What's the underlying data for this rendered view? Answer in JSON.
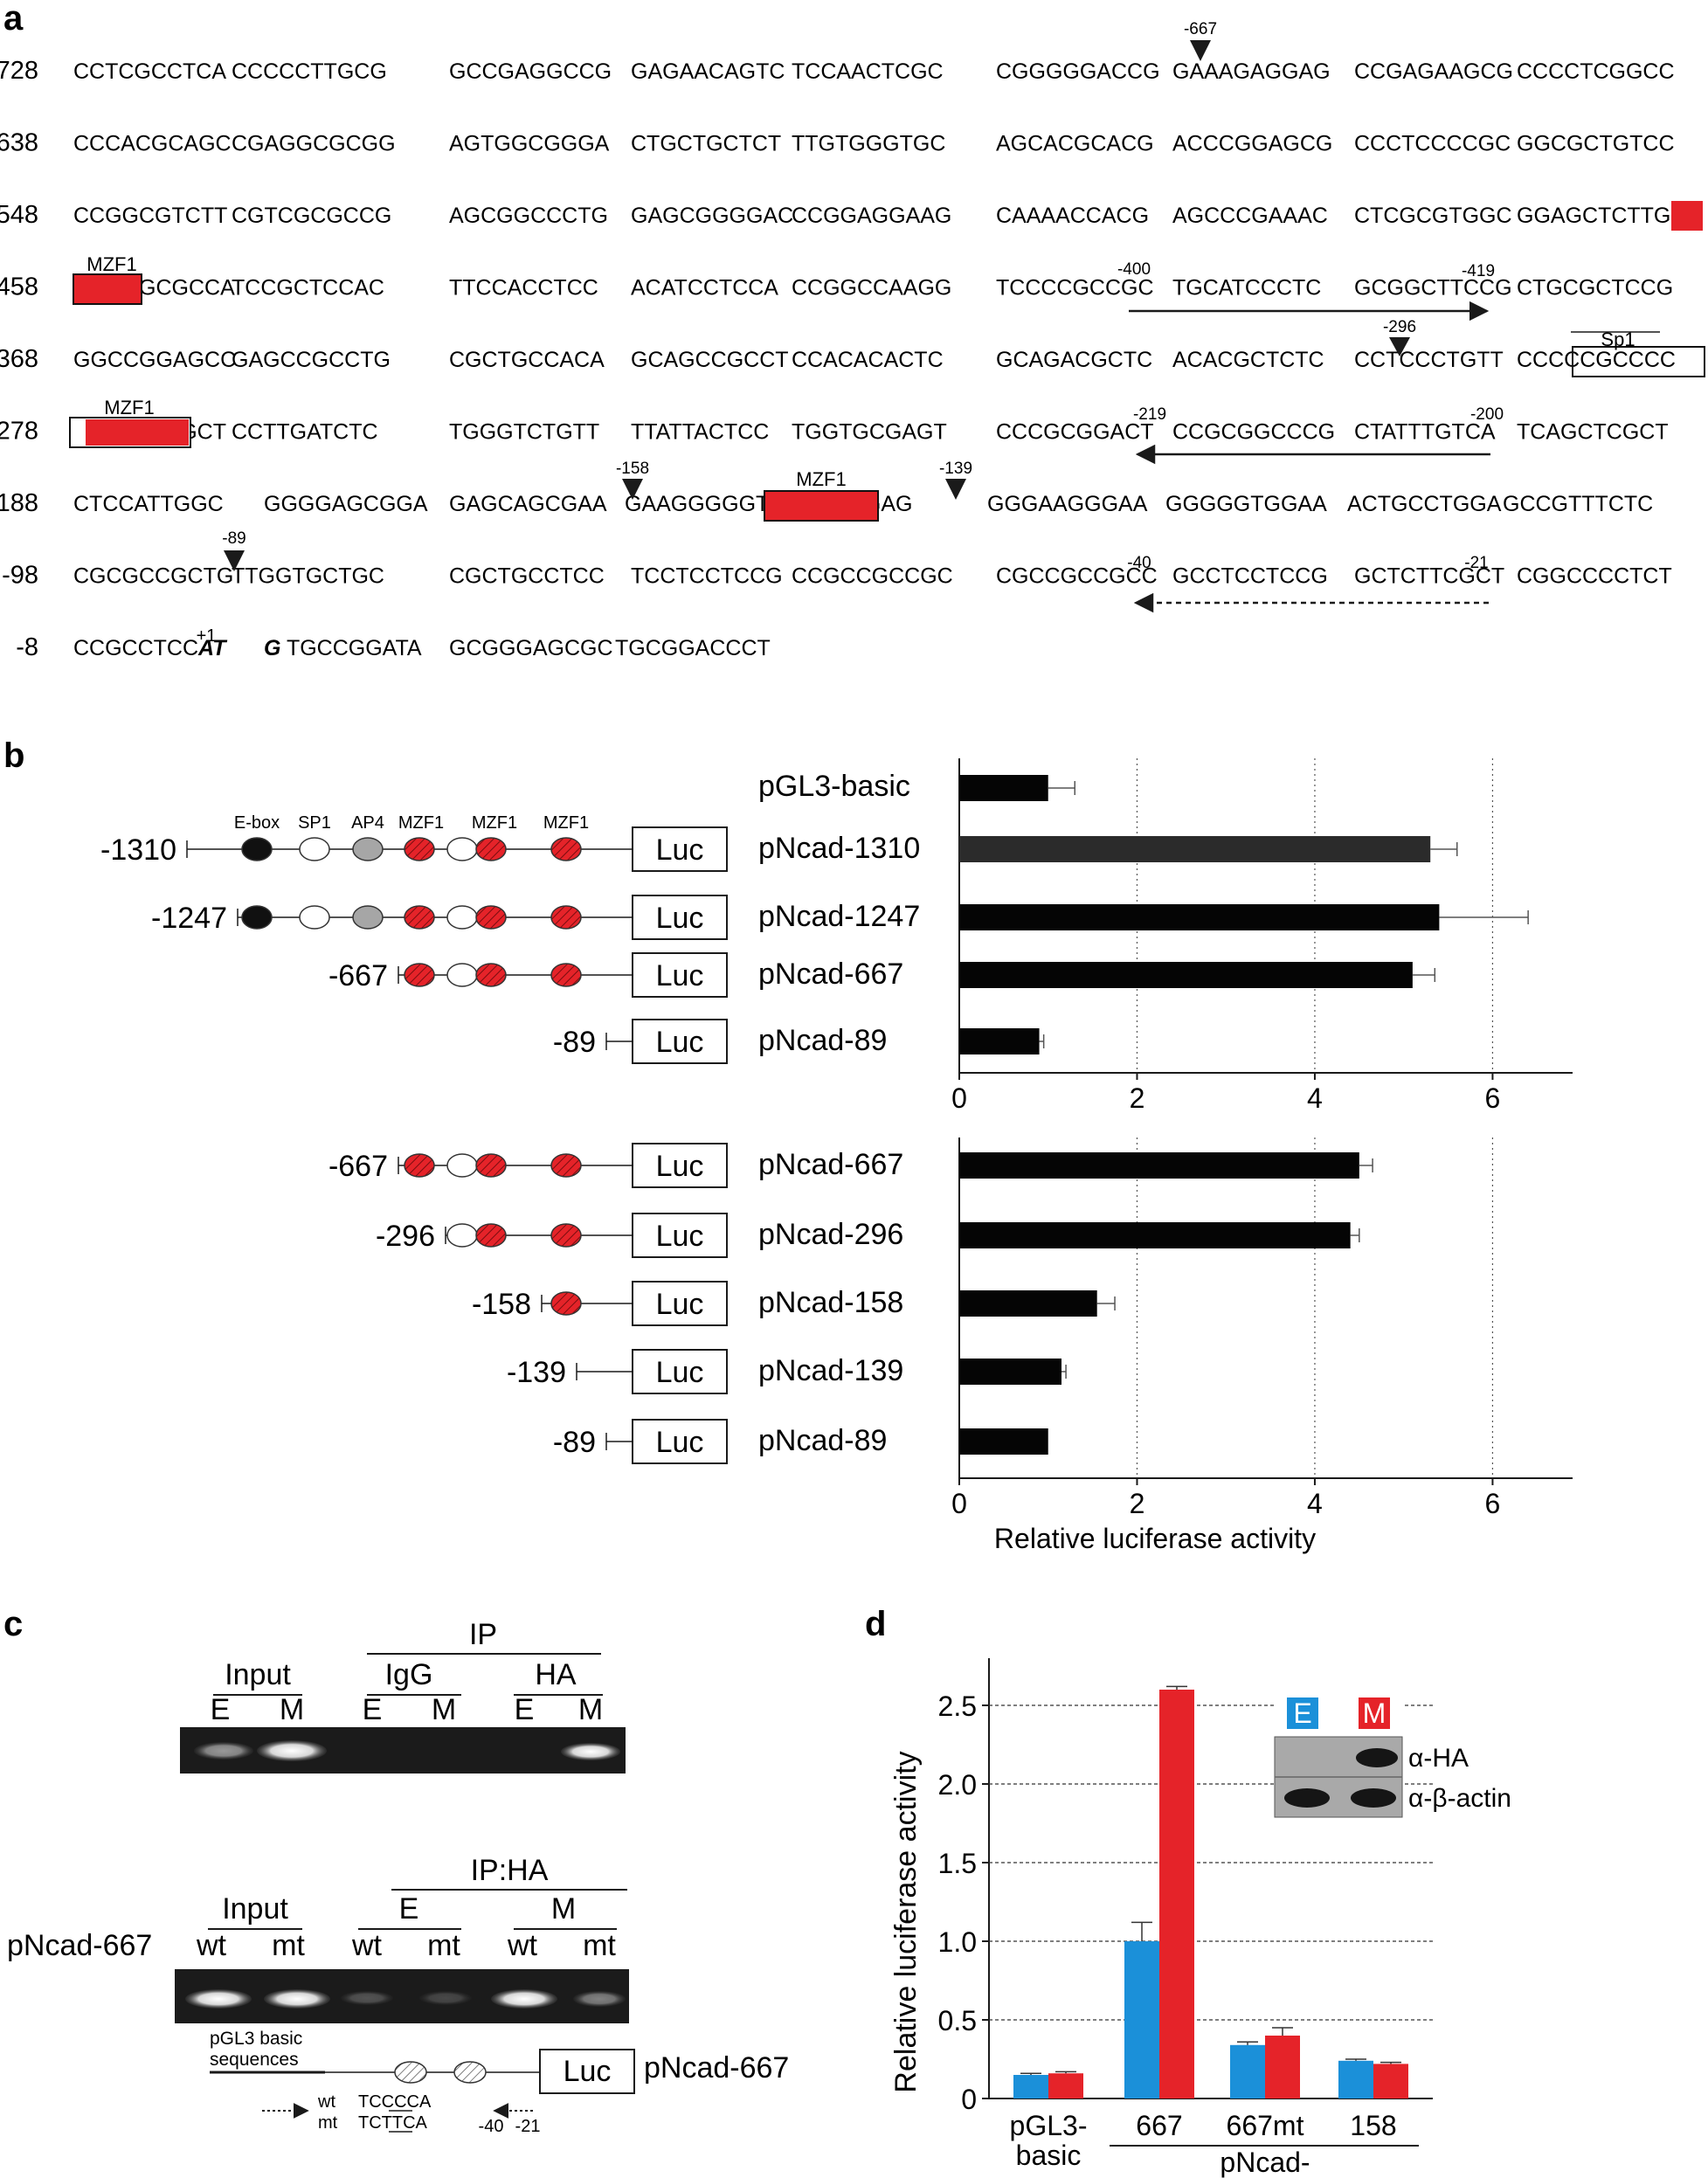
{
  "panel_labels": {
    "a": "a",
    "b": "b",
    "c": "c",
    "d": "d"
  },
  "colors": {
    "red": "#e52329",
    "blue": "#1b90d9",
    "black": "#111111",
    "gray_oval": "#a6a6a6",
    "gel_bg": "#1b1b1b"
  },
  "panel_a": {
    "rows": [
      {
        "pos": "-728",
        "seqs": [
          "CCTCGCCTCA",
          "CCCCCTTGCG",
          "GCCGAGGCCG",
          "GAGAACAGTC",
          "TCCAACTCGC",
          "CGGGGGACCG",
          "GAAAGAGGAG",
          "CCGAGAAGCG",
          "CCCCTCGGCC"
        ]
      },
      {
        "pos": "-638",
        "seqs": [
          "CCCACGCAGC",
          "CGAGGCGCGG",
          "AGTGGCGGGA",
          "CTGCTGCTCT",
          "TTGTGGGTGC",
          "AGCACGCACG",
          "ACCCGGAGCG",
          "CCCTCCCCGC",
          "GGCGCTGTCC"
        ]
      },
      {
        "pos": "-548",
        "seqs": [
          "CCGGCGTCTT",
          "CGTCGCGCCG",
          "AGCGGCCCTG",
          "GAGCGGGGAC",
          "CCGGAGGAAG",
          "CAAAACCACG",
          "AGCCCGAAAC",
          "CTCGCGTGGC",
          "GGAGCTCTTG"
        ]
      },
      {
        "pos": "-458",
        "seqs": [
          "GGGAGCGCCA",
          "TCCGCTCCAC",
          "TTCCACCTCC",
          "ACATCCTCCA",
          "CCGGCCAAGG",
          "TCCCCGCCGC",
          "TGCATCCCTC",
          "GCGGCTTCCG",
          "CTGCGCTCCG"
        ]
      },
      {
        "pos": "-368",
        "seqs": [
          "GGCCGGAGCC",
          "GAGCCGCCTG",
          "CGCTGCCACA",
          "GCAGCCGCCT",
          "CCACACACTC",
          "GCAGACGCTC",
          "ACACGCTCTC",
          "CCTCCCTGTT",
          "CCCCCGCCCC"
        ]
      },
      {
        "pos": "-278",
        "seqs": [
          "CTCCCCAGCT",
          "CCTTGATCTC",
          "TGGGTCTGTT",
          "TTATTACTCC",
          "TGGTGCGAGT",
          "CCCGCGGACT",
          "CCGCGGCCCG",
          "CTATTTGTCA",
          "TCAGCTCGCT"
        ]
      },
      {
        "pos": "-188",
        "seqs": [
          "CTCCATTGGC",
          "GGGGAGCGGA",
          "GAGCAGCGAA",
          "GAAGGGGGTG",
          "GGGAGGGAG",
          "GGGAAGGGAA",
          "GGGGGTGGAA",
          "ACTGCCTGGA",
          "GCCGTTTCTC"
        ]
      },
      {
        "pos": "-98",
        "seqs": [
          "CGCGCCGCTG",
          "TTGGTGCTGC",
          "CGCTGCCTCC",
          "TCCTCCTCCG",
          "CCGCCGCCGC",
          "CGCCGCCGCC",
          "GCCTCCTCCG",
          "GCTCTTCGCT",
          "CGGCCCCTCT"
        ]
      },
      {
        "pos": "-8",
        "seqs": [
          "CCGCCTCCAT",
          "GTGCCGGATA",
          "GCGGGAGCGC",
          "TGCGGACCCT"
        ]
      }
    ],
    "annotations": {
      "m667": "-667",
      "m400": "-400",
      "m419": "-419",
      "m296": "-296",
      "m219": "-219",
      "m200": "-200",
      "m158": "-158",
      "m139": "-139",
      "m89": "-89",
      "m40": "-40",
      "m21": "-21",
      "p1": "+1",
      "mzf1": "MZF1",
      "sp1": "Sp1"
    }
  },
  "panel_b": {
    "constructs_top": [
      {
        "start": "-1310",
        "name": "pNcad-1310",
        "value": 5.3,
        "error": 0.3
      },
      {
        "start": "-1247",
        "name": "pNcad-1247",
        "value": 5.4,
        "error": 1.0
      },
      {
        "start": "-667",
        "name": "pNcad-667",
        "value": 5.1,
        "error": 0.25
      },
      {
        "start": "-89",
        "name": "pNcad-89",
        "value": 0.9,
        "error": 0.05
      }
    ],
    "control": {
      "name": "pGL3-basic",
      "value": 1.0,
      "error": 0.3
    },
    "constructs_bottom": [
      {
        "start": "-667",
        "name": "pNcad-667",
        "value": 4.5,
        "error": 0.15
      },
      {
        "start": "-296",
        "name": "pNcad-296",
        "value": 4.4,
        "error": 0.1
      },
      {
        "start": "-158",
        "name": "pNcad-158",
        "value": 1.55,
        "error": 0.2
      },
      {
        "start": "-139",
        "name": "pNcad-139",
        "value": 1.15,
        "error": 0.05
      },
      {
        "start": "-89",
        "name": "pNcad-89",
        "value": 1.0,
        "error": 0.0
      }
    ],
    "site_labels": [
      "E-box",
      "SP1",
      "AP4",
      "MZF1",
      "MZF1",
      "MZF1"
    ],
    "luc": "Luc",
    "ticks": [
      "0",
      "2",
      "4",
      "6"
    ],
    "xlabel": "Relative luciferase activity"
  },
  "panel_c": {
    "ip": "IP",
    "input": "Input",
    "igg": "IgG",
    "ha": "HA",
    "lanes_top": [
      "E",
      "M",
      "E",
      "M",
      "E",
      "M"
    ],
    "ipha": "IP:HA",
    "e": "E",
    "m": "M",
    "construct": "pNcad-667",
    "lanes_bottom": [
      "wt",
      "mt",
      "wt",
      "mt",
      "wt",
      "mt"
    ],
    "pgl3_a": "pGL3 basic",
    "pgl3_b": "sequences",
    "luc": "Luc",
    "diagram_name": "pNcad-667",
    "wt": "wt",
    "mt": "mt",
    "wt_seq": "TCCCCA",
    "mt_seq": "TCTTCA",
    "m40": "-40",
    "m21": "-21"
  },
  "chart_data": [
    {
      "type": "bar",
      "orientation": "horizontal",
      "categories": [
        "pGL3-basic",
        "pNcad-1310",
        "pNcad-1247",
        "pNcad-667",
        "pNcad-89"
      ],
      "values": [
        1.0,
        5.3,
        5.4,
        5.1,
        0.9
      ],
      "errors": [
        0.3,
        0.3,
        1.0,
        0.25,
        0.05
      ],
      "xlim": [
        0,
        6.9
      ],
      "ticks": [
        0,
        2,
        4,
        6
      ]
    },
    {
      "type": "bar",
      "orientation": "horizontal",
      "categories": [
        "pNcad-667",
        "pNcad-296",
        "pNcad-158",
        "pNcad-139",
        "pNcad-89"
      ],
      "values": [
        4.5,
        4.4,
        1.55,
        1.15,
        1.0
      ],
      "errors": [
        0.15,
        0.1,
        0.2,
        0.05,
        0.0
      ],
      "xlabel": "Relative luciferase activity",
      "xlim": [
        0,
        6.9
      ],
      "ticks": [
        0,
        2,
        4,
        6
      ]
    },
    {
      "type": "bar",
      "categories": [
        "pGL3-basic",
        "667",
        "667mt",
        "158"
      ],
      "group_label": "pNcad-",
      "series": [
        {
          "name": "E",
          "color": "#1b90d9",
          "values": [
            0.15,
            1.0,
            0.34,
            0.24
          ],
          "errors": [
            0.01,
            0.12,
            0.02,
            0.01
          ]
        },
        {
          "name": "M",
          "color": "#e52329",
          "values": [
            0.16,
            2.6,
            0.4,
            0.22
          ],
          "errors": [
            0.01,
            0.02,
            0.05,
            0.01
          ]
        }
      ],
      "ylabel": "Relative luciferase activity",
      "ylim": [
        0,
        2.8
      ],
      "ticks": [
        "0",
        "0.5",
        "1.0",
        "1.5",
        "2.0",
        "2.5"
      ],
      "inset": {
        "e": "E",
        "m": "M",
        "ha": "α-HA",
        "actin": "α-β-actin"
      }
    }
  ]
}
